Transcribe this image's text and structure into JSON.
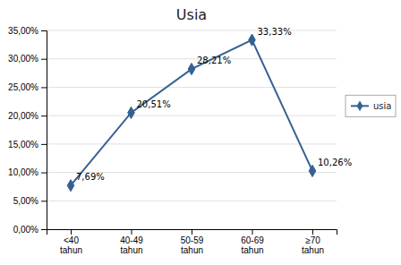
{
  "chart_data": {
    "type": "line",
    "title": "Usia",
    "categories": [
      "<40\ntahun",
      "40-49\ntahun",
      "50-59\ntahun",
      "60-69\ntahun",
      "≥70\ntahun"
    ],
    "series": [
      {
        "name": "usia",
        "color": "#366092",
        "marker": "diamond",
        "values": [
          7.69,
          20.51,
          28.21,
          33.33,
          10.26
        ],
        "value_labels": [
          "7,69%",
          "20,51%",
          "28,21%",
          "33,33%",
          "10,26%"
        ]
      }
    ],
    "ylim": [
      0,
      35
    ],
    "yticks": [
      {
        "value": 0,
        "label": "0,00%"
      },
      {
        "value": 5,
        "label": "5,00%"
      },
      {
        "value": 10,
        "label": "10,00%"
      },
      {
        "value": 15,
        "label": "15,00%"
      },
      {
        "value": 20,
        "label": "20,00%"
      },
      {
        "value": 25,
        "label": "25,00%"
      },
      {
        "value": 30,
        "label": "30,00%"
      },
      {
        "value": 35,
        "label": "35,00%"
      }
    ],
    "grid": true,
    "legend": "right",
    "data_labels": true
  }
}
